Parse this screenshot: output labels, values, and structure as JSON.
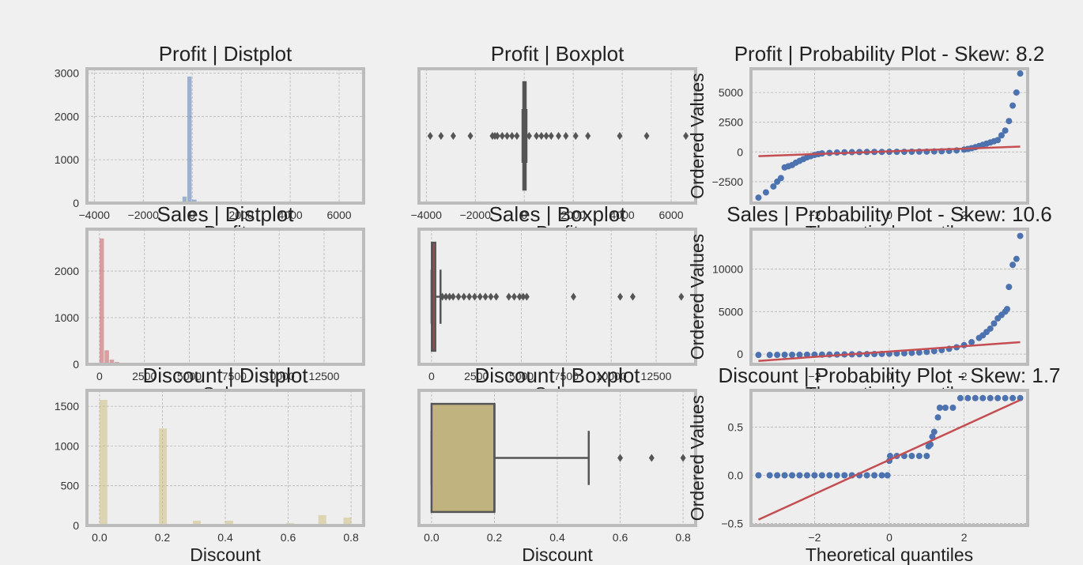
{
  "colors": {
    "figure_bg": "#f0f0f0",
    "axes_bg": "#eeeeee",
    "frame": "#bcbcbc",
    "grid": "#b5b5b5",
    "profit": "#4c72b0",
    "sales": "#c44e52",
    "discount": "#ccb974",
    "qq_points": "#4c72b0",
    "qq_line": "#c44e52",
    "box_line": "#555555",
    "box_fill_discount": "#c1b37f"
  },
  "chart_data": [
    {
      "id": "profit-dist",
      "type": "bar",
      "title": "Profit | Distplot",
      "xlabel": "Profit",
      "ylabel": "",
      "xlim": [
        -4300,
        7000
      ],
      "ylim": [
        0,
        3100
      ],
      "color": "#4c72b0",
      "alpha": 0.5,
      "xticks": [
        -4000,
        -2000,
        0,
        2000,
        4000,
        6000
      ],
      "xtick_labels": [
        "−4000",
        "−2000",
        "0",
        "2000",
        "4000",
        "6000"
      ],
      "yticks": [
        0,
        1000,
        2000,
        3000
      ],
      "ytick_labels": [
        "0",
        "1000",
        "2000",
        "3000"
      ],
      "bins": [
        {
          "x0": -400,
          "x1": -200,
          "v": 150
        },
        {
          "x0": -200,
          "x1": 0,
          "v": 2920
        },
        {
          "x0": 0,
          "x1": 200,
          "v": 80
        }
      ]
    },
    {
      "id": "profit-box",
      "type": "box",
      "title": "Profit | Boxplot",
      "xlabel": "Profit",
      "xlim": [
        -4300,
        7000
      ],
      "color": "#4c72b0",
      "xticks": [
        -4000,
        -2000,
        0,
        2000,
        4000,
        6000
      ],
      "xtick_labels": [
        "−4000",
        "−2000",
        "0",
        "2000",
        "4000",
        "6000"
      ],
      "q1": -10,
      "median": 9,
      "q3": 30,
      "whisker_low": -70,
      "whisker_high": 90,
      "outliers": [
        -3840,
        -3400,
        -2900,
        -2200,
        -1300,
        -1200,
        -1100,
        -900,
        -700,
        -500,
        -300,
        200,
        500,
        700,
        900,
        1100,
        1400,
        1700,
        2100,
        2600,
        3900,
        5000,
        6600
      ]
    },
    {
      "id": "profit-qq",
      "type": "scatter",
      "title": "Profit | Probability Plot - Skew: 8.2",
      "xlabel": "Theoretical quantiles",
      "ylabel": "Ordered Values",
      "xlim": [
        -3.7,
        3.7
      ],
      "ylim": [
        -4300,
        7000
      ],
      "xticks": [
        -2,
        0,
        2
      ],
      "xtick_labels": [
        "−2",
        "0",
        "2"
      ],
      "yticks": [
        -2500,
        0,
        2500,
        5000
      ],
      "ytick_labels": [
        "−2500",
        "0",
        "2500",
        "5000"
      ],
      "line": [
        [
          -3.5,
          -350
        ],
        [
          3.5,
          450
        ]
      ],
      "points": [
        [
          -3.5,
          -3840
        ],
        [
          -3.3,
          -3400
        ],
        [
          -3.1,
          -2900
        ],
        [
          -3.0,
          -2500
        ],
        [
          -2.9,
          -2200
        ],
        [
          -2.8,
          -1300
        ],
        [
          -2.7,
          -1200
        ],
        [
          -2.6,
          -1100
        ],
        [
          -2.5,
          -900
        ],
        [
          -2.4,
          -750
        ],
        [
          -2.3,
          -600
        ],
        [
          -2.2,
          -450
        ],
        [
          -2.1,
          -350
        ],
        [
          -2.0,
          -250
        ],
        [
          -1.9,
          -180
        ],
        [
          -1.8,
          -120
        ],
        [
          -1.6,
          -80
        ],
        [
          -1.4,
          -50
        ],
        [
          -1.2,
          -30
        ],
        [
          -1.0,
          -15
        ],
        [
          -0.8,
          -5
        ],
        [
          -0.6,
          0
        ],
        [
          -0.4,
          5
        ],
        [
          -0.2,
          8
        ],
        [
          0,
          10
        ],
        [
          0.2,
          13
        ],
        [
          0.4,
          16
        ],
        [
          0.6,
          20
        ],
        [
          0.8,
          25
        ],
        [
          1.0,
          32
        ],
        [
          1.2,
          42
        ],
        [
          1.4,
          60
        ],
        [
          1.6,
          90
        ],
        [
          1.8,
          130
        ],
        [
          2.0,
          200
        ],
        [
          2.1,
          250
        ],
        [
          2.2,
          320
        ],
        [
          2.3,
          400
        ],
        [
          2.4,
          500
        ],
        [
          2.5,
          600
        ],
        [
          2.6,
          700
        ],
        [
          2.7,
          800
        ],
        [
          2.8,
          900
        ],
        [
          2.9,
          1000
        ],
        [
          3.0,
          1400
        ],
        [
          3.1,
          1800
        ],
        [
          3.2,
          2600
        ],
        [
          3.3,
          3900
        ],
        [
          3.4,
          5000
        ],
        [
          3.5,
          6600
        ]
      ]
    },
    {
      "id": "sales-dist",
      "type": "bar",
      "title": "Sales | Distplot",
      "xlabel": "Sales",
      "ylabel": "",
      "xlim": [
        -700,
        14700
      ],
      "ylim": [
        0,
        2900
      ],
      "color": "#c44e52",
      "alpha": 0.5,
      "xticks": [
        0,
        2500,
        5000,
        7500,
        10000,
        12500
      ],
      "xtick_labels": [
        "0",
        "2500",
        "5000",
        "7500",
        "10000",
        "12500"
      ],
      "yticks": [
        0,
        1000,
        2000
      ],
      "ytick_labels": [
        "0",
        "1000",
        "2000"
      ],
      "bins": [
        {
          "x0": 0,
          "x1": 280,
          "v": 2700
        },
        {
          "x0": 280,
          "x1": 560,
          "v": 300
        },
        {
          "x0": 560,
          "x1": 840,
          "v": 100
        },
        {
          "x0": 840,
          "x1": 1120,
          "v": 50
        },
        {
          "x0": 1120,
          "x1": 1400,
          "v": 20
        },
        {
          "x0": 1400,
          "x1": 1680,
          "v": 10
        }
      ]
    },
    {
      "id": "sales-box",
      "type": "box",
      "title": "Sales | Boxplot",
      "xlabel": "Sales",
      "xlim": [
        -700,
        14700
      ],
      "color": "#c44e52",
      "xticks": [
        0,
        2500,
        5000,
        7500,
        10000,
        12500
      ],
      "xtick_labels": [
        "0",
        "2500",
        "5000",
        "7500",
        "10000",
        "12500"
      ],
      "q1": 17,
      "median": 55,
      "q3": 210,
      "whisker_low": 0,
      "whisker_high": 500,
      "outliers": [
        600,
        800,
        1000,
        1200,
        1500,
        1800,
        2100,
        2400,
        2700,
        3000,
        3300,
        3600,
        4300,
        4600,
        4900,
        5100,
        5300,
        7900,
        10500,
        11200,
        13900
      ]
    },
    {
      "id": "sales-qq",
      "type": "scatter",
      "title": "Sales | Probability Plot - Skew: 10.6",
      "xlabel": "Theoretical quantiles",
      "ylabel": "Ordered Values",
      "xlim": [
        -3.7,
        3.7
      ],
      "ylim": [
        -1200,
        14700
      ],
      "xticks": [
        -2,
        0,
        2
      ],
      "xtick_labels": [
        "−2",
        "0",
        "2"
      ],
      "yticks": [
        0,
        5000,
        10000
      ],
      "ytick_labels": [
        "0",
        "5000",
        "10000"
      ],
      "line": [
        [
          -3.5,
          -800
        ],
        [
          3.5,
          1400
        ]
      ],
      "points": [
        [
          -3.5,
          -100
        ],
        [
          -3.2,
          -100
        ],
        [
          -3.0,
          -90
        ],
        [
          -2.8,
          -85
        ],
        [
          -2.6,
          -80
        ],
        [
          -2.4,
          -75
        ],
        [
          -2.2,
          -70
        ],
        [
          -2.0,
          -65
        ],
        [
          -1.8,
          -60
        ],
        [
          -1.6,
          -55
        ],
        [
          -1.4,
          -50
        ],
        [
          -1.2,
          -40
        ],
        [
          -1.0,
          -30
        ],
        [
          -0.8,
          -20
        ],
        [
          -0.6,
          -5
        ],
        [
          -0.4,
          10
        ],
        [
          -0.2,
          25
        ],
        [
          0,
          45
        ],
        [
          0.2,
          70
        ],
        [
          0.4,
          100
        ],
        [
          0.6,
          140
        ],
        [
          0.8,
          190
        ],
        [
          1.0,
          260
        ],
        [
          1.2,
          350
        ],
        [
          1.4,
          470
        ],
        [
          1.6,
          620
        ],
        [
          1.8,
          800
        ],
        [
          2.0,
          1050
        ],
        [
          2.2,
          1400
        ],
        [
          2.4,
          1900
        ],
        [
          2.5,
          2200
        ],
        [
          2.6,
          2600
        ],
        [
          2.7,
          3000
        ],
        [
          2.8,
          3600
        ],
        [
          2.9,
          4200
        ],
        [
          3.0,
          4600
        ],
        [
          3.1,
          5000
        ],
        [
          3.15,
          5300
        ],
        [
          3.2,
          7900
        ],
        [
          3.3,
          10500
        ],
        [
          3.4,
          11200
        ],
        [
          3.5,
          13900
        ]
      ]
    },
    {
      "id": "discount-dist",
      "type": "bar",
      "title": "Discount | Distplot",
      "xlabel": "Discount",
      "ylabel": "",
      "xlim": [
        -0.04,
        0.84
      ],
      "ylim": [
        0,
        1700
      ],
      "color": "#ccb974",
      "alpha": 0.5,
      "xticks": [
        0,
        0.2,
        0.4,
        0.6,
        0.8
      ],
      "xtick_labels": [
        "0.0",
        "0.2",
        "0.4",
        "0.6",
        "0.8"
      ],
      "yticks": [
        0,
        500,
        1000,
        1500
      ],
      "ytick_labels": [
        "0",
        "500",
        "1000",
        "1500"
      ],
      "bins": [
        {
          "x0": 0,
          "x1": 0.027,
          "v": 1580
        },
        {
          "x0": 0.189,
          "x1": 0.216,
          "v": 1220
        },
        {
          "x0": 0.297,
          "x1": 0.324,
          "v": 60
        },
        {
          "x0": 0.4,
          "x1": 0.427,
          "v": 60
        },
        {
          "x0": 0.594,
          "x1": 0.621,
          "v": 30
        },
        {
          "x0": 0.696,
          "x1": 0.723,
          "v": 130
        },
        {
          "x0": 0.776,
          "x1": 0.803,
          "v": 100
        }
      ]
    },
    {
      "id": "discount-box",
      "type": "box",
      "title": "Discount | Boxplot",
      "xlabel": "Discount",
      "xlim": [
        -0.04,
        0.84
      ],
      "color": "#c1b37f",
      "xticks": [
        0,
        0.2,
        0.4,
        0.6,
        0.8
      ],
      "xtick_labels": [
        "0.0",
        "0.2",
        "0.4",
        "0.6",
        "0.8"
      ],
      "q1": 0,
      "median": 0.2,
      "q3": 0.2,
      "whisker_low": 0,
      "whisker_high": 0.5,
      "outliers": [
        0.6,
        0.7,
        0.8
      ]
    },
    {
      "id": "discount-qq",
      "type": "scatter",
      "title": "Discount | Probability Plot - Skew: 1.7",
      "xlabel": "Theoretical quantiles",
      "ylabel": "Ordered Values",
      "xlim": [
        -3.7,
        3.7
      ],
      "ylim": [
        -0.52,
        0.88
      ],
      "xticks": [
        -2,
        0,
        2
      ],
      "xtick_labels": [
        "−2",
        "0",
        "2"
      ],
      "yticks": [
        -0.5,
        0,
        0.5
      ],
      "ytick_labels": [
        "−0.5",
        "0.0",
        "0.5"
      ],
      "line": [
        [
          -3.5,
          -0.46
        ],
        [
          3.5,
          0.78
        ]
      ],
      "points": [
        [
          -3.5,
          0
        ],
        [
          -3.2,
          0
        ],
        [
          -3.0,
          0
        ],
        [
          -2.8,
          0
        ],
        [
          -2.6,
          0
        ],
        [
          -2.4,
          0
        ],
        [
          -2.2,
          0
        ],
        [
          -2.0,
          0
        ],
        [
          -1.8,
          0
        ],
        [
          -1.6,
          0
        ],
        [
          -1.4,
          0
        ],
        [
          -1.2,
          0
        ],
        [
          -1.0,
          0
        ],
        [
          -0.8,
          0
        ],
        [
          -0.6,
          0
        ],
        [
          -0.4,
          0
        ],
        [
          -0.2,
          0
        ],
        [
          -0.05,
          0
        ],
        [
          0,
          0.15
        ],
        [
          0.02,
          0.2
        ],
        [
          0.2,
          0.2
        ],
        [
          0.4,
          0.2
        ],
        [
          0.6,
          0.2
        ],
        [
          0.8,
          0.2
        ],
        [
          1.0,
          0.2
        ],
        [
          1.05,
          0.3
        ],
        [
          1.1,
          0.32
        ],
        [
          1.15,
          0.4
        ],
        [
          1.2,
          0.45
        ],
        [
          1.3,
          0.6
        ],
        [
          1.35,
          0.7
        ],
        [
          1.5,
          0.7
        ],
        [
          1.7,
          0.7
        ],
        [
          1.9,
          0.8
        ],
        [
          2.1,
          0.8
        ],
        [
          2.3,
          0.8
        ],
        [
          2.5,
          0.8
        ],
        [
          2.7,
          0.8
        ],
        [
          2.9,
          0.8
        ],
        [
          3.1,
          0.8
        ],
        [
          3.3,
          0.8
        ],
        [
          3.5,
          0.8
        ]
      ]
    }
  ]
}
